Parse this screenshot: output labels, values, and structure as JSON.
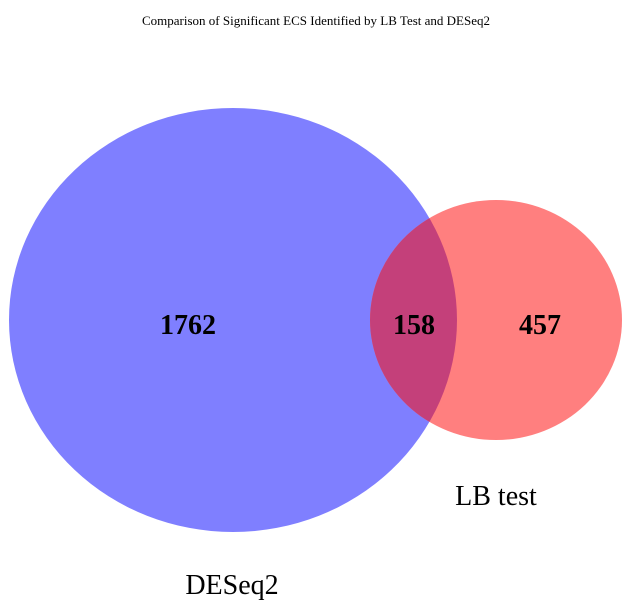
{
  "title": "Comparison of Significant ECS Identified by LB Test and DESeq2",
  "sets": [
    {
      "id": "deseq2",
      "label": "DESeq2",
      "color": "#7f7fff",
      "only_count": "1762"
    },
    {
      "id": "lbtest",
      "label": "LB test",
      "color": "#ff7f7f",
      "only_count": "457"
    }
  ],
  "intersection": {
    "count": "158",
    "color": "#c4407a"
  }
}
